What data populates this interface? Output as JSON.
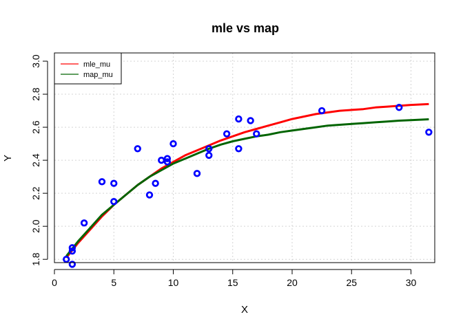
{
  "chart_data": {
    "type": "scatter",
    "title": "mle vs map",
    "xlabel": "X",
    "ylabel": "Y",
    "xlim": [
      0,
      32
    ],
    "ylim": [
      1.78,
      3.05
    ],
    "xticks": [
      "0",
      "5",
      "10",
      "15",
      "20",
      "25",
      "30"
    ],
    "yticks": [
      "1.8",
      "2.0",
      "2.2",
      "2.4",
      "2.6",
      "2.8",
      "3.0"
    ],
    "grid": true,
    "legend_position": "top-left",
    "points": {
      "color": "#0000ff",
      "x": [
        1,
        1.5,
        1.5,
        1.5,
        2.5,
        4,
        5,
        5,
        7,
        8,
        8.5,
        9,
        9.5,
        9.5,
        10,
        12,
        13,
        13,
        14.5,
        15.5,
        15.5,
        16.5,
        17,
        22.5,
        29,
        31.5
      ],
      "y": [
        1.8,
        1.87,
        1.85,
        1.77,
        2.02,
        2.27,
        2.26,
        2.15,
        2.47,
        2.19,
        2.26,
        2.4,
        2.41,
        2.39,
        2.5,
        2.32,
        2.47,
        2.43,
        2.56,
        2.65,
        2.47,
        2.64,
        2.56,
        2.7,
        2.72,
        2.57
      ]
    },
    "series": [
      {
        "name": "mle_mu",
        "color": "#ff0000",
        "x": [
          1,
          2,
          3,
          4,
          5,
          6,
          7,
          8,
          9,
          10,
          11,
          12,
          13,
          14,
          15,
          16,
          17,
          18,
          19,
          20,
          21,
          22,
          23,
          24,
          25,
          26,
          27,
          28,
          29,
          30,
          31.5
        ],
        "y": [
          1.81,
          1.9,
          1.98,
          2.06,
          2.13,
          2.19,
          2.25,
          2.3,
          2.35,
          2.39,
          2.43,
          2.46,
          2.49,
          2.52,
          2.545,
          2.57,
          2.59,
          2.61,
          2.63,
          2.65,
          2.665,
          2.68,
          2.69,
          2.7,
          2.705,
          2.71,
          2.72,
          2.725,
          2.73,
          2.735,
          2.74
        ]
      },
      {
        "name": "map_mu",
        "color": "#006400",
        "x": [
          1,
          2,
          3,
          4,
          5,
          6,
          7,
          8,
          9,
          10,
          11,
          12,
          13,
          14,
          15,
          16,
          17,
          18,
          19,
          20,
          21,
          22,
          23,
          24,
          25,
          26,
          27,
          28,
          29,
          30,
          31.5
        ],
        "y": [
          1.82,
          1.91,
          1.99,
          2.07,
          2.13,
          2.19,
          2.25,
          2.3,
          2.34,
          2.38,
          2.41,
          2.44,
          2.47,
          2.495,
          2.515,
          2.53,
          2.545,
          2.555,
          2.57,
          2.58,
          2.59,
          2.6,
          2.61,
          2.615,
          2.62,
          2.625,
          2.63,
          2.635,
          2.64,
          2.643,
          2.648
        ]
      }
    ]
  }
}
